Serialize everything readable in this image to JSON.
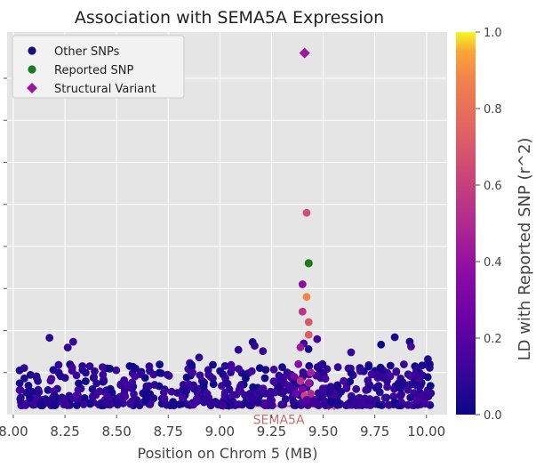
{
  "chart_data": {
    "type": "scatter",
    "title": "Association with SEMA5A Expression",
    "xlabel": "Position on Chrom 5 (MB)",
    "ylabel": "",
    "xlim": [
      7.97,
      10.1
    ],
    "ylim": [
      0,
      9.1
    ],
    "xticks": [
      "8.00",
      "8.25",
      "8.50",
      "8.75",
      "9.00",
      "9.25",
      "9.50",
      "9.75",
      "10.00"
    ],
    "xtick_values": [
      8.0,
      8.25,
      8.5,
      8.75,
      9.0,
      9.25,
      9.5,
      9.75,
      10.0
    ],
    "grid": true,
    "legend_position": "top-left",
    "legend": [
      {
        "label": "Other SNPs",
        "marker": "circle",
        "color": "#1a0e78"
      },
      {
        "label": "Reported SNP",
        "marker": "circle",
        "color": "#1b7a1b"
      },
      {
        "label": "Structural Variant",
        "marker": "diamond",
        "color": "#9c179e"
      }
    ],
    "colorbar": {
      "label": "LD with Reported SNP (r^2)",
      "range": [
        0.0,
        1.0
      ],
      "ticks": [
        "0.0",
        "0.2",
        "0.4",
        "0.6",
        "0.8",
        "1.0"
      ],
      "tick_values": [
        0.0,
        0.2,
        0.4,
        0.6,
        0.8,
        1.0
      ],
      "colormap": "plasma"
    },
    "gene": {
      "name": "SEMA5A",
      "start": 9.03,
      "end": 9.54,
      "color": "#d46a78"
    },
    "reported_snp": {
      "x": 9.43,
      "y": 3.6
    },
    "structural_variant": {
      "x": 9.41,
      "y": 8.6
    },
    "highlighted_snps": [
      {
        "x": 9.42,
        "y": 4.8,
        "r2": 0.66
      },
      {
        "x": 9.4,
        "y": 3.1,
        "r2": 0.38
      },
      {
        "x": 9.42,
        "y": 2.8,
        "r2": 0.88
      },
      {
        "x": 9.4,
        "y": 2.45,
        "r2": 0.55
      },
      {
        "x": 9.43,
        "y": 2.2,
        "r2": 0.7
      },
      {
        "x": 9.43,
        "y": 1.9,
        "r2": 0.72
      },
      {
        "x": 9.39,
        "y": 1.6,
        "r2": 0.42
      },
      {
        "x": 9.38,
        "y": 1.2,
        "r2": 0.35
      },
      {
        "x": 9.44,
        "y": 1.0,
        "r2": 0.45
      },
      {
        "x": 9.39,
        "y": 0.8,
        "r2": 0.55
      },
      {
        "x": 9.43,
        "y": 0.75,
        "r2": 0.4
      },
      {
        "x": 9.4,
        "y": 0.6,
        "r2": 0.3
      },
      {
        "x": 9.44,
        "y": 0.5,
        "r2": 0.5
      },
      {
        "x": 9.41,
        "y": 0.45,
        "r2": 0.62
      },
      {
        "x": 9.37,
        "y": 0.5,
        "r2": 0.25
      },
      {
        "x": 9.42,
        "y": 0.35,
        "r2": 0.2
      },
      {
        "x": 9.36,
        "y": 0.9,
        "r2": 0.3
      }
    ],
    "background_snps": {
      "x_range": [
        8.03,
        10.03
      ],
      "count": 620,
      "y_typical_max": 1.2,
      "y_max": 1.85,
      "r2_range": [
        0.0,
        0.15
      ]
    }
  }
}
